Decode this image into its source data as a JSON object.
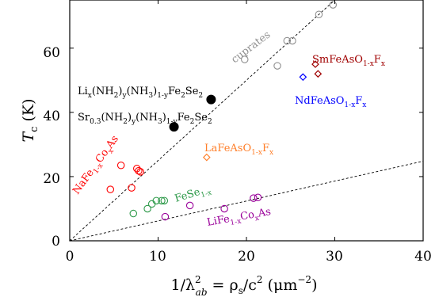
{
  "chart_data": {
    "type": "scatter",
    "xlabel_parts": [
      "1/λ",
      "2",
      "ab",
      " = ρ",
      "s",
      "/c",
      "2",
      "  (μm",
      "−2",
      ")"
    ],
    "ylabel_parts": [
      "T",
      "c",
      " (K)"
    ],
    "xlim": [
      0,
      40
    ],
    "ylim": [
      0,
      75
    ],
    "x_ticks": [
      "0",
      "10",
      "20",
      "30",
      "40"
    ],
    "y_ticks": [
      "0",
      "20",
      "40",
      "60"
    ],
    "grid": false,
    "reference_lines": [
      {
        "slope": 2.5
      },
      {
        "slope": 0.62
      }
    ],
    "series": [
      {
        "color": "#909090",
        "marker": "circle-open",
        "points": [
          [
            19.8,
            56.5
          ],
          [
            23.5,
            54.5
          ],
          [
            24.6,
            62.3
          ],
          [
            25.2,
            62.3
          ],
          [
            28.2,
            70.5
          ],
          [
            29.8,
            73.5
          ]
        ]
      },
      {
        "color": "#000000",
        "marker": "circle-filled",
        "points": [
          [
            11.8,
            35.5
          ],
          [
            16.0,
            44.0
          ]
        ]
      },
      {
        "color": "#ff0000",
        "marker": "circle-open",
        "points": [
          [
            4.6,
            16.0
          ],
          [
            5.8,
            23.5
          ],
          [
            7.0,
            16.5
          ],
          [
            7.6,
            22.5
          ],
          [
            7.8,
            21.8
          ],
          [
            8.0,
            21.5
          ]
        ]
      },
      {
        "color": "#ff7f2a",
        "marker": "diamond-open",
        "points": [
          [
            15.5,
            26.0
          ]
        ]
      },
      {
        "color": "#a00000",
        "marker": "diamond-open",
        "points": [
          [
            27.8,
            55.0
          ],
          [
            28.1,
            52.0
          ]
        ]
      },
      {
        "color": "#0000ff",
        "marker": "diamond-open",
        "points": [
          [
            26.4,
            51.0
          ]
        ]
      },
      {
        "color": "#2e9a4a",
        "marker": "circle-open",
        "points": [
          [
            7.2,
            8.5
          ],
          [
            8.8,
            10.0
          ],
          [
            9.3,
            11.5
          ],
          [
            9.8,
            12.5
          ],
          [
            10.4,
            12.5
          ],
          [
            10.7,
            12.5
          ]
        ]
      },
      {
        "color": "#9a009a",
        "marker": "circle-open",
        "points": [
          [
            10.8,
            7.5
          ],
          [
            13.6,
            11.0
          ],
          [
            17.5,
            10.0
          ],
          [
            20.8,
            13.3
          ],
          [
            21.3,
            13.5
          ]
        ]
      }
    ],
    "annotations": [
      {
        "text": "cuprates",
        "color": "#909090"
      },
      {
        "text_parts": [
          "Li",
          "x",
          "(NH",
          "2",
          ")",
          "y",
          "(NH",
          "3",
          ")",
          "1-y",
          "Fe",
          "2",
          "Se",
          "2"
        ],
        "color": "#000000"
      },
      {
        "text_parts": [
          "Sr",
          "0.3",
          "(NH",
          "2",
          ")",
          "y",
          "(NH",
          "3",
          ")",
          "1-y",
          "Fe",
          "2",
          "Se",
          "2"
        ],
        "color": "#000000"
      },
      {
        "text_parts": [
          "SmFeAsO",
          "1-x",
          "F",
          "x"
        ],
        "color": "#a00000"
      },
      {
        "text_parts": [
          "NdFeAsO",
          "1-x",
          "F",
          "x"
        ],
        "color": "#0000ff"
      },
      {
        "text_parts": [
          "LaFeAsO",
          "1-x",
          "F",
          "x"
        ],
        "color": "#ff7f2a"
      },
      {
        "text_parts": [
          "NaFe",
          "1-x",
          "Co",
          "x",
          "As"
        ],
        "color": "#ff0000"
      },
      {
        "text_parts": [
          "FeSe",
          "1-x"
        ],
        "color": "#2e9a4a"
      },
      {
        "text_parts": [
          "LiFe",
          "1-x",
          "Co",
          "x",
          "As"
        ],
        "color": "#9a009a"
      }
    ]
  }
}
